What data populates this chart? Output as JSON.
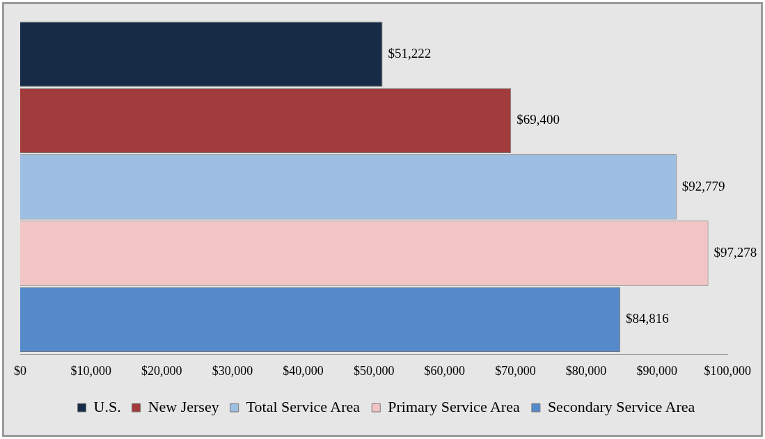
{
  "chart_data": {
    "type": "bar",
    "orientation": "horizontal",
    "categories": [
      null
    ],
    "series": [
      {
        "name": "U.S.",
        "color": "#172b47",
        "values": [
          51222
        ],
        "value_labels": [
          "$51,222"
        ]
      },
      {
        "name": "New Jersey",
        "color": "#a23c3c",
        "values": [
          69400
        ],
        "value_labels": [
          "$69,400"
        ]
      },
      {
        "name": "Total Service Area",
        "color": "#9dbfe4",
        "values": [
          92779
        ],
        "value_labels": [
          "$92,779"
        ]
      },
      {
        "name": "Primary Service Area",
        "color": "#f2c4c4",
        "values": [
          97278
        ],
        "value_labels": [
          "$97,278"
        ]
      },
      {
        "name": "Secondary Service Area",
        "color": "#558bcb",
        "values": [
          84816
        ],
        "value_labels": [
          "$84,816"
        ]
      }
    ],
    "xlim": [
      0,
      100000
    ],
    "xticks": [
      {
        "value": 0,
        "label": "$0"
      },
      {
        "value": 10000,
        "label": "$10,000"
      },
      {
        "value": 20000,
        "label": "$20,000"
      },
      {
        "value": 30000,
        "label": "$30,000"
      },
      {
        "value": 40000,
        "label": "$40,000"
      },
      {
        "value": 50000,
        "label": "$50,000"
      },
      {
        "value": 60000,
        "label": "$60,000"
      },
      {
        "value": 70000,
        "label": "$70,000"
      },
      {
        "value": 80000,
        "label": "$80,000"
      },
      {
        "value": 90000,
        "label": "$90,000"
      },
      {
        "value": 100000,
        "label": "$100,000"
      }
    ],
    "legend": "bottom"
  }
}
